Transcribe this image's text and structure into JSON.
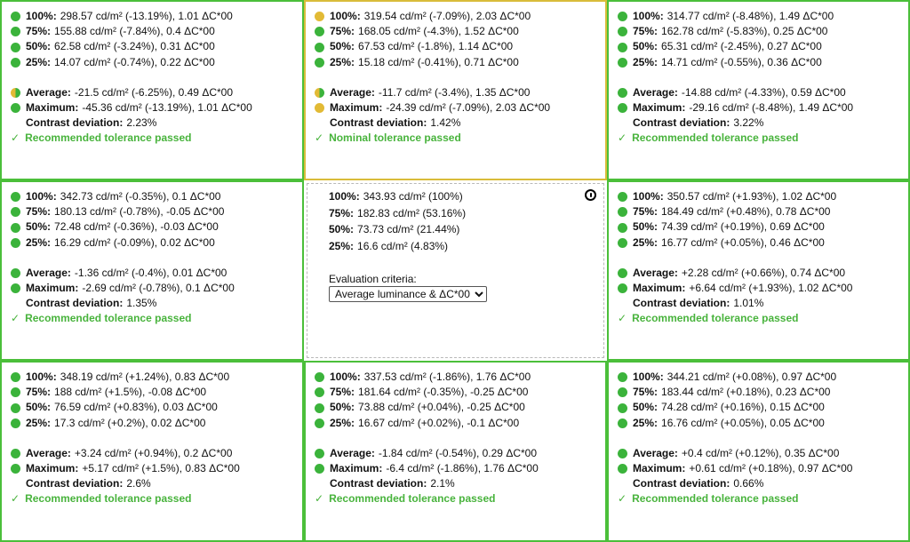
{
  "colors": {
    "pass": "#3bb33b",
    "nominal": "#e2ba35",
    "border_ok": "#4bbf3a",
    "border_nominal": "#d9bc3a"
  },
  "cells": [
    {
      "rows": [
        {
          "label": "100%:",
          "value": "298.57 cd/m² (-13.19%), 1.01 ΔC*00",
          "status": "green"
        },
        {
          "label": "75%:",
          "value": "155.88 cd/m² (-7.84%), 0.4 ΔC*00",
          "status": "green"
        },
        {
          "label": "50%:",
          "value": "62.58 cd/m² (-3.24%), 0.31 ΔC*00",
          "status": "green"
        },
        {
          "label": "25%:",
          "value": "14.07 cd/m² (-0.74%), 0.22 ΔC*00",
          "status": "green"
        }
      ],
      "average": {
        "label": "Average:",
        "value": "-21.5 cd/m² (-6.25%), 0.49 ΔC*00",
        "status": "half"
      },
      "maximum": {
        "label": "Maximum:",
        "value": "-45.36 cd/m² (-13.19%), 1.01 ΔC*00",
        "status": "green"
      },
      "contrast": {
        "label": "Contrast deviation:",
        "value": "2.23%"
      },
      "result": "Recommended tolerance passed"
    },
    {
      "rows": [
        {
          "label": "100%:",
          "value": "319.54 cd/m² (-7.09%), 2.03 ΔC*00",
          "status": "yellow"
        },
        {
          "label": "75%:",
          "value": "168.05 cd/m² (-4.3%), 1.52 ΔC*00",
          "status": "green"
        },
        {
          "label": "50%:",
          "value": "67.53 cd/m² (-1.8%), 1.14 ΔC*00",
          "status": "green"
        },
        {
          "label": "25%:",
          "value": "15.18 cd/m² (-0.41%), 0.71 ΔC*00",
          "status": "green"
        }
      ],
      "average": {
        "label": "Average:",
        "value": "-11.7 cd/m² (-3.4%), 1.35 ΔC*00",
        "status": "half"
      },
      "maximum": {
        "label": "Maximum:",
        "value": "-24.39 cd/m² (-7.09%), 2.03 ΔC*00",
        "status": "yellow"
      },
      "contrast": {
        "label": "Contrast deviation:",
        "value": "1.42%"
      },
      "result": "Nominal tolerance passed"
    },
    {
      "rows": [
        {
          "label": "100%:",
          "value": "314.77 cd/m² (-8.48%), 1.49 ΔC*00",
          "status": "green"
        },
        {
          "label": "75%:",
          "value": "162.78 cd/m² (-5.83%), 0.25 ΔC*00",
          "status": "green"
        },
        {
          "label": "50%:",
          "value": "65.31 cd/m² (-2.45%), 0.27 ΔC*00",
          "status": "green"
        },
        {
          "label": "25%:",
          "value": "14.71 cd/m² (-0.55%), 0.36 ΔC*00",
          "status": "green"
        }
      ],
      "average": {
        "label": "Average:",
        "value": "-14.88 cd/m² (-4.33%), 0.59 ΔC*00",
        "status": "green"
      },
      "maximum": {
        "label": "Maximum:",
        "value": "-29.16 cd/m² (-8.48%), 1.49 ΔC*00",
        "status": "green"
      },
      "contrast": {
        "label": "Contrast deviation:",
        "value": "3.22%"
      },
      "result": "Recommended tolerance passed"
    },
    {
      "rows": [
        {
          "label": "100%:",
          "value": "342.73 cd/m² (-0.35%), 0.1 ΔC*00",
          "status": "green"
        },
        {
          "label": "75%:",
          "value": "180.13 cd/m² (-0.78%), -0.05 ΔC*00",
          "status": "green"
        },
        {
          "label": "50%:",
          "value": "72.48 cd/m² (-0.36%), -0.03 ΔC*00",
          "status": "green"
        },
        {
          "label": "25%:",
          "value": "16.29 cd/m² (-0.09%), 0.02 ΔC*00",
          "status": "green"
        }
      ],
      "average": {
        "label": "Average:",
        "value": "-1.36 cd/m² (-0.4%), 0.01 ΔC*00",
        "status": "green"
      },
      "maximum": {
        "label": "Maximum:",
        "value": "-2.69 cd/m² (-0.78%), 0.1 ΔC*00",
        "status": "green"
      },
      "contrast": {
        "label": "Contrast deviation:",
        "value": "1.35%"
      },
      "result": "Recommended tolerance passed"
    },
    {
      "reference": true,
      "rows": [
        {
          "label": "100%:",
          "value": "343.93 cd/m² (100%)"
        },
        {
          "label": "75%:",
          "value": "182.83 cd/m² (53.16%)"
        },
        {
          "label": "50%:",
          "value": "73.73 cd/m² (21.44%)"
        },
        {
          "label": "25%:",
          "value": "16.6 cd/m² (4.83%)"
        }
      ],
      "criteria_label": "Evaluation criteria:",
      "criteria_selected": "Average luminance & ΔC*00"
    },
    {
      "rows": [
        {
          "label": "100%:",
          "value": "350.57 cd/m² (+1.93%), 1.02 ΔC*00",
          "status": "green"
        },
        {
          "label": "75%:",
          "value": "184.49 cd/m² (+0.48%), 0.78 ΔC*00",
          "status": "green"
        },
        {
          "label": "50%:",
          "value": "74.39 cd/m² (+0.19%), 0.69 ΔC*00",
          "status": "green"
        },
        {
          "label": "25%:",
          "value": "16.77 cd/m² (+0.05%), 0.46 ΔC*00",
          "status": "green"
        }
      ],
      "average": {
        "label": "Average:",
        "value": "+2.28 cd/m² (+0.66%), 0.74 ΔC*00",
        "status": "green"
      },
      "maximum": {
        "label": "Maximum:",
        "value": "+6.64 cd/m² (+1.93%), 1.02 ΔC*00",
        "status": "green"
      },
      "contrast": {
        "label": "Contrast deviation:",
        "value": "1.01%"
      },
      "result": "Recommended tolerance passed"
    },
    {
      "rows": [
        {
          "label": "100%:",
          "value": "348.19 cd/m² (+1.24%), 0.83 ΔC*00",
          "status": "green"
        },
        {
          "label": "75%:",
          "value": "188 cd/m² (+1.5%), -0.08 ΔC*00",
          "status": "green"
        },
        {
          "label": "50%:",
          "value": "76.59 cd/m² (+0.83%), 0.03 ΔC*00",
          "status": "green"
        },
        {
          "label": "25%:",
          "value": "17.3 cd/m² (+0.2%), 0.02 ΔC*00",
          "status": "green"
        }
      ],
      "average": {
        "label": "Average:",
        "value": "+3.24 cd/m² (+0.94%), 0.2 ΔC*00",
        "status": "green"
      },
      "maximum": {
        "label": "Maximum:",
        "value": "+5.17 cd/m² (+1.5%), 0.83 ΔC*00",
        "status": "green"
      },
      "contrast": {
        "label": "Contrast deviation:",
        "value": "2.6%"
      },
      "result": "Recommended tolerance passed"
    },
    {
      "rows": [
        {
          "label": "100%:",
          "value": "337.53 cd/m² (-1.86%), 1.76 ΔC*00",
          "status": "green"
        },
        {
          "label": "75%:",
          "value": "181.64 cd/m² (-0.35%), -0.25 ΔC*00",
          "status": "green"
        },
        {
          "label": "50%:",
          "value": "73.88 cd/m² (+0.04%), -0.25 ΔC*00",
          "status": "green"
        },
        {
          "label": "25%:",
          "value": "16.67 cd/m² (+0.02%), -0.1 ΔC*00",
          "status": "green"
        }
      ],
      "average": {
        "label": "Average:",
        "value": "-1.84 cd/m² (-0.54%), 0.29 ΔC*00",
        "status": "green"
      },
      "maximum": {
        "label": "Maximum:",
        "value": "-6.4 cd/m² (-1.86%), 1.76 ΔC*00",
        "status": "green"
      },
      "contrast": {
        "label": "Contrast deviation:",
        "value": "2.1%"
      },
      "result": "Recommended tolerance passed"
    },
    {
      "rows": [
        {
          "label": "100%:",
          "value": "344.21 cd/m² (+0.08%), 0.97 ΔC*00",
          "status": "green"
        },
        {
          "label": "75%:",
          "value": "183.44 cd/m² (+0.18%), 0.23 ΔC*00",
          "status": "green"
        },
        {
          "label": "50%:",
          "value": "74.28 cd/m² (+0.16%), 0.15 ΔC*00",
          "status": "green"
        },
        {
          "label": "25%:",
          "value": "16.76 cd/m² (+0.05%), 0.05 ΔC*00",
          "status": "green"
        }
      ],
      "average": {
        "label": "Average:",
        "value": "+0.4 cd/m² (+0.12%), 0.35 ΔC*00",
        "status": "green"
      },
      "maximum": {
        "label": "Maximum:",
        "value": "+0.61 cd/m² (+0.18%), 0.97 ΔC*00",
        "status": "green"
      },
      "contrast": {
        "label": "Contrast deviation:",
        "value": "0.66%"
      },
      "result": "Recommended tolerance passed"
    }
  ]
}
